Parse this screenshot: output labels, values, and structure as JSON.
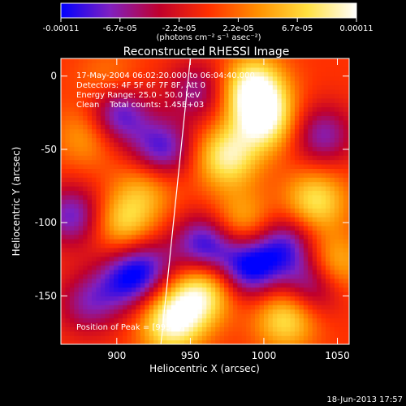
{
  "colorbar": {
    "ticks": [
      "-0.00011",
      "-6.7e-05",
      "-2.2e-05",
      "2.2e-05",
      "6.7e-05",
      "0.00011"
    ],
    "unit_label": "(photons cm⁻² s⁻¹ asec⁻²)",
    "colors": [
      "#0000ff",
      "#8020c0",
      "#c0002c",
      "#ff3000",
      "#ff9000",
      "#ffe040",
      "#ffffff"
    ]
  },
  "chart_data": {
    "type": "heatmap",
    "title": "Reconstructed RHESSI Image",
    "xlabel": "Heliocentric X (arcsec)",
    "ylabel": "Heliocentric Y (arcsec)",
    "xlim": [
      862,
      1058
    ],
    "ylim": [
      -183,
      12
    ],
    "x_ticks": [
      900,
      950,
      1000,
      1050
    ],
    "y_ticks": [
      0,
      -50,
      -100,
      -150
    ],
    "color_range": [
      -0.00011,
      0.00011
    ],
    "limb_line": [
      [
        930,
        -183
      ],
      [
        950,
        12
      ]
    ],
    "annotations": [
      "17-May-2004 06:02:20.000 to 06:04:40.000",
      "Detectors: 4F 5F 6F 7F 8F, Att 0",
      "Energy Range: 25.0 - 50.0 keV",
      "Clean    Total counts: 1.45E+03"
    ],
    "peak_label": "Position of Peak = [993,-8]",
    "peak": [
      993,
      -8
    ],
    "bright_sources": [
      {
        "x": 993,
        "y": -8,
        "value": 0.00011
      },
      {
        "x": 1000,
        "y": -30,
        "value": 0.0001
      },
      {
        "x": 975,
        "y": -55,
        "value": 9e-05
      },
      {
        "x": 1035,
        "y": -85,
        "value": 8e-05
      },
      {
        "x": 1045,
        "y": -130,
        "value": 9e-05
      },
      {
        "x": 1015,
        "y": -165,
        "value": 8e-05
      },
      {
        "x": 985,
        "y": -100,
        "value": 6e-05
      },
      {
        "x": 960,
        "y": -145,
        "value": 8e-05
      },
      {
        "x": 935,
        "y": -170,
        "value": 7e-05
      },
      {
        "x": 905,
        "y": -100,
        "value": 7e-05
      },
      {
        "x": 945,
        "y": -160,
        "value": 6e-05
      },
      {
        "x": 880,
        "y": -40,
        "value": 5e-05
      },
      {
        "x": 920,
        "y": -75,
        "value": 5e-05
      },
      {
        "x": 895,
        "y": -5,
        "value": 4e-05
      }
    ],
    "dark_sources": [
      {
        "x": 900,
        "y": -25,
        "value": -0.0001
      },
      {
        "x": 930,
        "y": -50,
        "value": -9e-05
      },
      {
        "x": 960,
        "y": -115,
        "value": -0.0001
      },
      {
        "x": 990,
        "y": -130,
        "value": -0.00011
      },
      {
        "x": 1015,
        "y": -115,
        "value": -8e-05
      },
      {
        "x": 905,
        "y": -140,
        "value": -7e-05
      },
      {
        "x": 1035,
        "y": -140,
        "value": -0.0001
      },
      {
        "x": 880,
        "y": -155,
        "value": -6e-05
      },
      {
        "x": 920,
        "y": -130,
        "value": -7e-05
      },
      {
        "x": 1040,
        "y": -40,
        "value": -7e-05
      },
      {
        "x": 955,
        "y": -10,
        "value": -6e-05
      },
      {
        "x": 870,
        "y": -95,
        "value": -8e-05
      }
    ]
  },
  "footer": {
    "timestamp": "18-Jun-2013 17:57"
  }
}
